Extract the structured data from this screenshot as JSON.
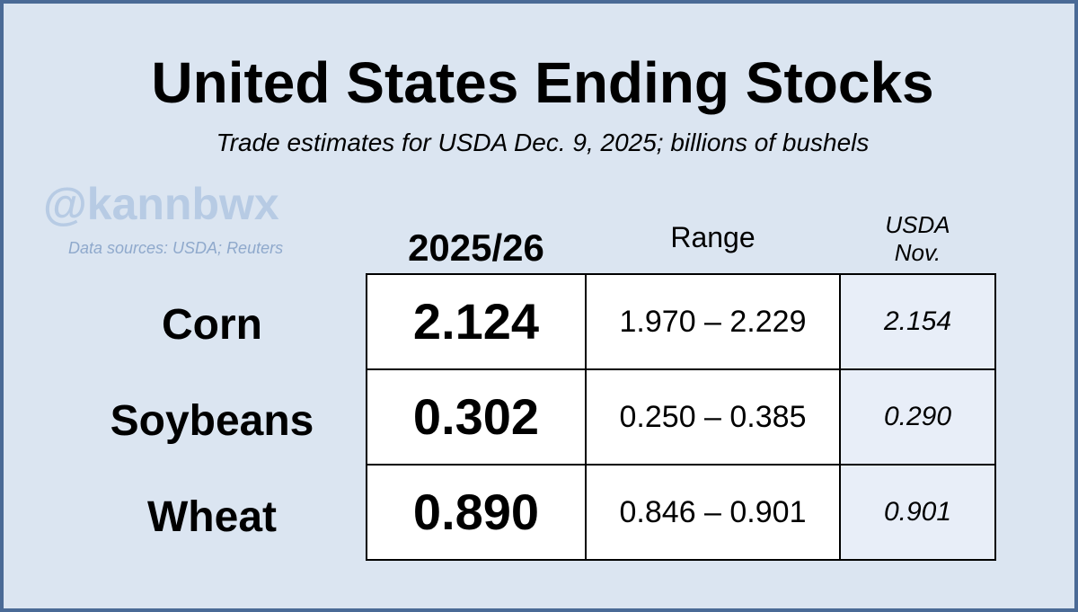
{
  "title": "United States Ending Stocks",
  "subtitle": "Trade estimates for USDA Dec. 9, 2025; billions of bushels",
  "watermark": "@kannbwx",
  "sources": "Data sources: USDA; Reuters",
  "columns": {
    "estimate": "2025/26",
    "range": "Range",
    "usda_line1": "USDA",
    "usda_line2": "Nov."
  },
  "colors": {
    "background": "#dbe5f1",
    "border": "#4a6a96",
    "usda_cell": "#e8eef8"
  },
  "chart_data": {
    "type": "table",
    "title": "United States Ending Stocks",
    "subtitle": "Trade estimates for USDA Dec. 9, 2025; billions of bushels",
    "columns": [
      "2025/26",
      "Range",
      "USDA Nov."
    ],
    "rows": [
      {
        "label": "Corn",
        "estimate": "2.124",
        "range": "1.970 – 2.229",
        "usda_nov": "2.154"
      },
      {
        "label": "Soybeans",
        "estimate": "0.302",
        "range": "0.250 – 0.385",
        "usda_nov": "0.290"
      },
      {
        "label": "Wheat",
        "estimate": "0.890",
        "range": "0.846 – 0.901",
        "usda_nov": "0.901"
      }
    ]
  }
}
